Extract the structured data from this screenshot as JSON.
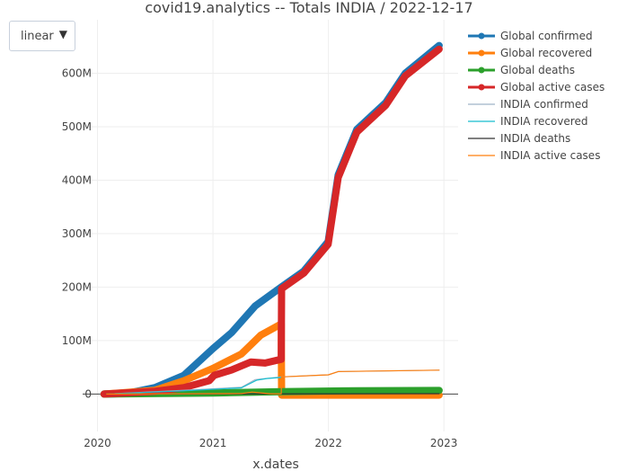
{
  "scale_dropdown": {
    "selected": "linear",
    "arrow": "▼"
  },
  "chart_data": {
    "type": "line",
    "title": "covid19.analytics -- Totals  INDIA  /  2022-12-17",
    "xlabel": "x.dates",
    "ylabel": "",
    "xlim": [
      "2019-11-15",
      "2023-02-15"
    ],
    "ylim": [
      -70,
      700
    ],
    "x_ticks": [
      "2020",
      "2021",
      "2022",
      "2023"
    ],
    "y_ticks": [
      {
        "v": 0,
        "label": "0"
      },
      {
        "v": 100,
        "label": "100M"
      },
      {
        "v": 200,
        "label": "200M"
      },
      {
        "v": 300,
        "label": "300M"
      },
      {
        "v": 400,
        "label": "400M"
      },
      {
        "v": 500,
        "label": "500M"
      },
      {
        "v": 600,
        "label": "600M"
      }
    ],
    "grid": true,
    "legend": "right",
    "series": [
      {
        "name": "Global confirmed",
        "color": "#1f77b4",
        "thick": true,
        "points": [
          [
            "2020-01-22",
            0
          ],
          [
            "2020-04-01",
            1
          ],
          [
            "2020-07-01",
            12
          ],
          [
            "2020-10-01",
            35
          ],
          [
            "2021-01-01",
            85
          ],
          [
            "2021-03-01",
            115
          ],
          [
            "2021-05-15",
            165
          ],
          [
            "2021-08-05",
            200
          ],
          [
            "2021-10-15",
            230
          ],
          [
            "2021-12-31",
            285
          ],
          [
            "2022-02-01",
            410
          ],
          [
            "2022-04-01",
            495
          ],
          [
            "2022-07-01",
            545
          ],
          [
            "2022-09-01",
            600
          ],
          [
            "2022-12-17",
            652
          ]
        ]
      },
      {
        "name": "Global recovered",
        "color": "#ff7f0e",
        "thick": true,
        "points": [
          [
            "2020-01-22",
            0
          ],
          [
            "2020-07-01",
            7
          ],
          [
            "2020-10-01",
            25
          ],
          [
            "2021-01-01",
            48
          ],
          [
            "2021-04-01",
            75
          ],
          [
            "2021-06-01",
            110
          ],
          [
            "2021-08-05",
            131
          ],
          [
            "2021-08-06",
            -2
          ],
          [
            "2022-12-17",
            -2
          ]
        ]
      },
      {
        "name": "Global deaths",
        "color": "#2ca02c",
        "thick": true,
        "points": [
          [
            "2020-01-22",
            0
          ],
          [
            "2021-01-01",
            2
          ],
          [
            "2021-08-05",
            4.3
          ],
          [
            "2022-04-01",
            6.2
          ],
          [
            "2022-12-17",
            6.7
          ]
        ]
      },
      {
        "name": "Global active cases",
        "color": "#d62728",
        "thick": true,
        "points": [
          [
            "2020-01-22",
            0
          ],
          [
            "2020-07-01",
            5
          ],
          [
            "2020-10-01",
            12
          ],
          [
            "2020-12-20",
            25
          ],
          [
            "2021-01-05",
            35
          ],
          [
            "2021-03-01",
            45
          ],
          [
            "2021-05-01",
            60
          ],
          [
            "2021-06-15",
            58
          ],
          [
            "2021-08-05",
            65
          ],
          [
            "2021-08-06",
            197
          ],
          [
            "2021-10-15",
            226
          ],
          [
            "2021-12-31",
            280
          ],
          [
            "2022-02-01",
            405
          ],
          [
            "2022-04-01",
            490
          ],
          [
            "2022-07-01",
            540
          ],
          [
            "2022-09-01",
            595
          ],
          [
            "2022-12-17",
            645
          ]
        ]
      },
      {
        "name": "INDIA confirmed",
        "color": "#9fb3c8",
        "thick": false,
        "points": [
          [
            "2020-01-30",
            0
          ],
          [
            "2020-10-01",
            7
          ],
          [
            "2021-04-01",
            12.5
          ],
          [
            "2021-05-15",
            27
          ],
          [
            "2021-08-05",
            32
          ],
          [
            "2022-01-01",
            36
          ],
          [
            "2022-02-01",
            42
          ],
          [
            "2022-12-17",
            44.7
          ]
        ]
      },
      {
        "name": "INDIA recovered",
        "color": "#17becf",
        "thick": false,
        "points": [
          [
            "2020-01-30",
            0
          ],
          [
            "2020-10-01",
            6
          ],
          [
            "2021-04-01",
            11.5
          ],
          [
            "2021-05-20",
            26
          ],
          [
            "2021-06-20",
            29
          ],
          [
            "2021-08-05",
            31
          ]
        ]
      },
      {
        "name": "INDIA deaths",
        "color": "#333333",
        "thick": false,
        "points": [
          [
            "2020-01-30",
            0
          ],
          [
            "2022-12-17",
            0.53
          ]
        ]
      },
      {
        "name": "INDIA active cases",
        "color": "#ff7f0e",
        "thick": false,
        "points": [
          [
            "2020-01-30",
            0
          ],
          [
            "2021-04-01",
            1
          ],
          [
            "2021-05-05",
            3.7
          ],
          [
            "2021-07-01",
            0.5
          ],
          [
            "2021-08-05",
            0.4
          ],
          [
            "2021-08-06",
            32
          ],
          [
            "2022-01-01",
            36
          ],
          [
            "2022-02-01",
            42
          ],
          [
            "2022-12-17",
            44.7
          ]
        ]
      }
    ]
  }
}
